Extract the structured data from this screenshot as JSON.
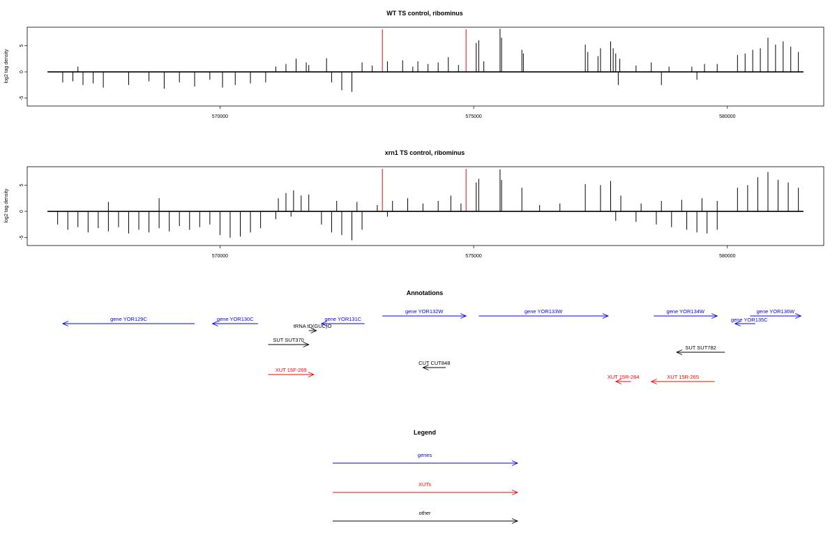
{
  "chart_data": [
    {
      "type": "bar",
      "title": "WT TS control, ribominus",
      "ylabel": "log2 tag density",
      "xlim": [
        566200,
        581900
      ],
      "ylim": [
        -6.5,
        8.5
      ],
      "yticks": [
        -5,
        0,
        5
      ],
      "xticks": [
        570000,
        575000,
        580000
      ],
      "x_tick_labels": [
        "570000",
        "575000",
        "580000"
      ],
      "y_tick_labels": [
        "-5",
        "0",
        "5"
      ],
      "track_start": 566600,
      "track_end": 581500,
      "positive_signal": [
        {
          "x": 567200,
          "y": 1.0
        },
        {
          "x": 571100,
          "y": 1.0
        },
        {
          "x": 571300,
          "y": 1.5
        },
        {
          "x": 571500,
          "y": 2.5
        },
        {
          "x": 571700,
          "y": 1.8
        },
        {
          "x": 571750,
          "y": 1.3
        },
        {
          "x": 572100,
          "y": 2.6
        },
        {
          "x": 572800,
          "y": 1.8
        },
        {
          "x": 573000,
          "y": 1.2
        },
        {
          "x": 573300,
          "y": 2.0
        },
        {
          "x": 573600,
          "y": 2.2
        },
        {
          "x": 573800,
          "y": 1.0
        },
        {
          "x": 573900,
          "y": 2.0
        },
        {
          "x": 574100,
          "y": 1.5
        },
        {
          "x": 574300,
          "y": 1.8
        },
        {
          "x": 574500,
          "y": 2.8
        },
        {
          "x": 574700,
          "y": 1.3
        },
        {
          "x": 575050,
          "y": 5.5
        },
        {
          "x": 575100,
          "y": 6.0
        },
        {
          "x": 575200,
          "y": 2.0
        },
        {
          "x": 575520,
          "y": 8.2
        },
        {
          "x": 575550,
          "y": 6.5
        },
        {
          "x": 575950,
          "y": 4.2
        },
        {
          "x": 575980,
          "y": 3.5
        },
        {
          "x": 577200,
          "y": 5.2
        },
        {
          "x": 577250,
          "y": 3.8
        },
        {
          "x": 577450,
          "y": 3.0
        },
        {
          "x": 577500,
          "y": 4.5
        },
        {
          "x": 577700,
          "y": 5.8
        },
        {
          "x": 577750,
          "y": 4.5
        },
        {
          "x": 577800,
          "y": 3.5
        },
        {
          "x": 577880,
          "y": 2.5
        },
        {
          "x": 578200,
          "y": 1.2
        },
        {
          "x": 578500,
          "y": 1.8
        },
        {
          "x": 578850,
          "y": 1.0
        },
        {
          "x": 579300,
          "y": 1.0
        },
        {
          "x": 579550,
          "y": 1.5
        },
        {
          "x": 579800,
          "y": 1.5
        },
        {
          "x": 580200,
          "y": 3.2
        },
        {
          "x": 580350,
          "y": 3.5
        },
        {
          "x": 580500,
          "y": 4.2
        },
        {
          "x": 580650,
          "y": 4.5
        },
        {
          "x": 580800,
          "y": 6.5
        },
        {
          "x": 580950,
          "y": 5.2
        },
        {
          "x": 581100,
          "y": 5.8
        },
        {
          "x": 581250,
          "y": 4.8
        },
        {
          "x": 581400,
          "y": 3.8
        }
      ],
      "negative_signal": [
        {
          "x": 566900,
          "y": -2.0
        },
        {
          "x": 567100,
          "y": -1.8
        },
        {
          "x": 567300,
          "y": -2.5
        },
        {
          "x": 567500,
          "y": -2.2
        },
        {
          "x": 567700,
          "y": -3.0
        },
        {
          "x": 568200,
          "y": -2.5
        },
        {
          "x": 568600,
          "y": -1.8
        },
        {
          "x": 568900,
          "y": -3.2
        },
        {
          "x": 569200,
          "y": -2.0
        },
        {
          "x": 569500,
          "y": -2.8
        },
        {
          "x": 569800,
          "y": -1.5
        },
        {
          "x": 570050,
          "y": -3.0
        },
        {
          "x": 570300,
          "y": -2.5
        },
        {
          "x": 570600,
          "y": -2.2
        },
        {
          "x": 570900,
          "y": -2.0
        },
        {
          "x": 572200,
          "y": -2.0
        },
        {
          "x": 572400,
          "y": -3.5
        },
        {
          "x": 572600,
          "y": -3.8
        },
        {
          "x": 577850,
          "y": -2.5
        },
        {
          "x": 578700,
          "y": -2.5
        },
        {
          "x": 579400,
          "y": -1.5
        }
      ],
      "highlight_lines": [
        573200,
        574850
      ],
      "highlight_color": "#ff0000"
    },
    {
      "type": "bar",
      "title": "xrn1 TS control, ribominus",
      "ylabel": "log2 tag density",
      "xlim": [
        566200,
        581900
      ],
      "ylim": [
        -6.5,
        8.5
      ],
      "yticks": [
        -5,
        0,
        5
      ],
      "xticks": [
        570000,
        575000,
        580000
      ],
      "x_tick_labels": [
        "570000",
        "575000",
        "580000"
      ],
      "y_tick_labels": [
        "-5",
        "0",
        "5"
      ],
      "track_start": 566600,
      "track_end": 581500,
      "positive_signal": [
        {
          "x": 567800,
          "y": 1.8
        },
        {
          "x": 568800,
          "y": 2.5
        },
        {
          "x": 571150,
          "y": 2.5
        },
        {
          "x": 571300,
          "y": 3.5
        },
        {
          "x": 571450,
          "y": 4.0
        },
        {
          "x": 571600,
          "y": 3.0
        },
        {
          "x": 571750,
          "y": 3.2
        },
        {
          "x": 572300,
          "y": 2.0
        },
        {
          "x": 572700,
          "y": 1.8
        },
        {
          "x": 573100,
          "y": 1.2
        },
        {
          "x": 573400,
          "y": 2.0
        },
        {
          "x": 573700,
          "y": 2.5
        },
        {
          "x": 574000,
          "y": 1.5
        },
        {
          "x": 574300,
          "y": 2.0
        },
        {
          "x": 574550,
          "y": 3.0
        },
        {
          "x": 574750,
          "y": 1.5
        },
        {
          "x": 575050,
          "y": 5.5
        },
        {
          "x": 575100,
          "y": 6.2
        },
        {
          "x": 575520,
          "y": 8.0
        },
        {
          "x": 575550,
          "y": 6.0
        },
        {
          "x": 575950,
          "y": 4.5
        },
        {
          "x": 576300,
          "y": 1.2
        },
        {
          "x": 576700,
          "y": 1.5
        },
        {
          "x": 577200,
          "y": 5.2
        },
        {
          "x": 577500,
          "y": 5.0
        },
        {
          "x": 577700,
          "y": 5.8
        },
        {
          "x": 577900,
          "y": 3.0
        },
        {
          "x": 578300,
          "y": 1.5
        },
        {
          "x": 578700,
          "y": 2.0
        },
        {
          "x": 579100,
          "y": 2.2
        },
        {
          "x": 579500,
          "y": 2.5
        },
        {
          "x": 579800,
          "y": 2.0
        },
        {
          "x": 580200,
          "y": 4.5
        },
        {
          "x": 580400,
          "y": 5.0
        },
        {
          "x": 580600,
          "y": 6.5
        },
        {
          "x": 580800,
          "y": 7.5
        },
        {
          "x": 581000,
          "y": 6.0
        },
        {
          "x": 581200,
          "y": 5.5
        },
        {
          "x": 581400,
          "y": 4.5
        }
      ],
      "negative_signal": [
        {
          "x": 566800,
          "y": -2.5
        },
        {
          "x": 567000,
          "y": -3.5
        },
        {
          "x": 567200,
          "y": -3.0
        },
        {
          "x": 567400,
          "y": -4.0
        },
        {
          "x": 567600,
          "y": -3.2
        },
        {
          "x": 567800,
          "y": -3.8
        },
        {
          "x": 568000,
          "y": -3.0
        },
        {
          "x": 568200,
          "y": -4.2
        },
        {
          "x": 568400,
          "y": -3.5
        },
        {
          "x": 568600,
          "y": -4.0
        },
        {
          "x": 568800,
          "y": -3.2
        },
        {
          "x": 569000,
          "y": -3.8
        },
        {
          "x": 569200,
          "y": -2.8
        },
        {
          "x": 569400,
          "y": -3.5
        },
        {
          "x": 569600,
          "y": -3.0
        },
        {
          "x": 569800,
          "y": -2.5
        },
        {
          "x": 570000,
          "y": -4.5
        },
        {
          "x": 570200,
          "y": -5.0
        },
        {
          "x": 570400,
          "y": -4.8
        },
        {
          "x": 570600,
          "y": -4.0
        },
        {
          "x": 570800,
          "y": -3.2
        },
        {
          "x": 571100,
          "y": -1.5
        },
        {
          "x": 571400,
          "y": -1.0
        },
        {
          "x": 572000,
          "y": -2.5
        },
        {
          "x": 572200,
          "y": -4.0
        },
        {
          "x": 572400,
          "y": -4.5
        },
        {
          "x": 572600,
          "y": -5.5
        },
        {
          "x": 572800,
          "y": -3.5
        },
        {
          "x": 573300,
          "y": -1.0
        },
        {
          "x": 577800,
          "y": -1.8
        },
        {
          "x": 578200,
          "y": -2.0
        },
        {
          "x": 578600,
          "y": -2.5
        },
        {
          "x": 578900,
          "y": -3.0
        },
        {
          "x": 579200,
          "y": -3.5
        },
        {
          "x": 579400,
          "y": -4.0
        },
        {
          "x": 579600,
          "y": -4.2
        },
        {
          "x": 579800,
          "y": -3.5
        }
      ],
      "highlight_lines": [
        573200,
        574850
      ],
      "highlight_color": "#ff0000"
    }
  ],
  "annotations": {
    "title": "Annotations",
    "colors": {
      "gene": "#0000ff",
      "xut": "#ff0000",
      "other": "#000000"
    },
    "items": [
      {
        "label": "gene YOR129C",
        "kind": "gene",
        "start": 566900,
        "end": 569500,
        "dir": "left",
        "row": 0
      },
      {
        "label": "gene YOR130C",
        "kind": "gene",
        "start": 569850,
        "end": 570750,
        "dir": "left",
        "row": 0
      },
      {
        "label": "gene YOR131C",
        "kind": "gene",
        "start": 572000,
        "end": 572850,
        "dir": "left",
        "row": 0
      },
      {
        "label": "gene YOR132W",
        "kind": "gene",
        "start": 573200,
        "end": 574850,
        "dir": "right",
        "row": -1
      },
      {
        "label": "gene YOR133W",
        "kind": "gene",
        "start": 575100,
        "end": 577650,
        "dir": "right",
        "row": -1
      },
      {
        "label": "gene YOR134W",
        "kind": "gene",
        "start": 578550,
        "end": 579800,
        "dir": "right",
        "row": -1
      },
      {
        "label": "gene YOR135C",
        "kind": "gene",
        "start": 580150,
        "end": 580550,
        "dir": "left",
        "row": 0.5
      },
      {
        "label": "gene YOR136W",
        "kind": "gene",
        "start": 580450,
        "end": 581450,
        "dir": "right",
        "row": -1
      },
      {
        "label": "tRNA tD(GUC)O",
        "kind": "other",
        "start": 571750,
        "end": 571900,
        "dir": "right",
        "row": 1
      },
      {
        "label": "SUT SUT370",
        "kind": "other",
        "start": 570950,
        "end": 571750,
        "dir": "right",
        "row": 2
      },
      {
        "label": "SUT SUT782",
        "kind": "other",
        "start": 579000,
        "end": 579950,
        "dir": "left",
        "row": 3
      },
      {
        "label": "CUT CUT848",
        "kind": "other",
        "start": 574000,
        "end": 574450,
        "dir": "left",
        "row": 4
      },
      {
        "label": "XUT 15F-269",
        "kind": "xut",
        "start": 570950,
        "end": 571850,
        "dir": "right",
        "row": 5
      },
      {
        "label": "XUT 15R-264",
        "kind": "xut",
        "start": 577800,
        "end": 578100,
        "dir": "left",
        "row": 6
      },
      {
        "label": "XUT 15R-265",
        "kind": "xut",
        "start": 578500,
        "end": 579750,
        "dir": "left",
        "row": 6
      }
    ]
  },
  "legend": {
    "title": "Legend",
    "items": [
      {
        "label": "genes",
        "color": "#0000ff"
      },
      {
        "label": "XUTs",
        "color": "#ff0000"
      },
      {
        "label": "other",
        "color": "#000000"
      }
    ]
  }
}
